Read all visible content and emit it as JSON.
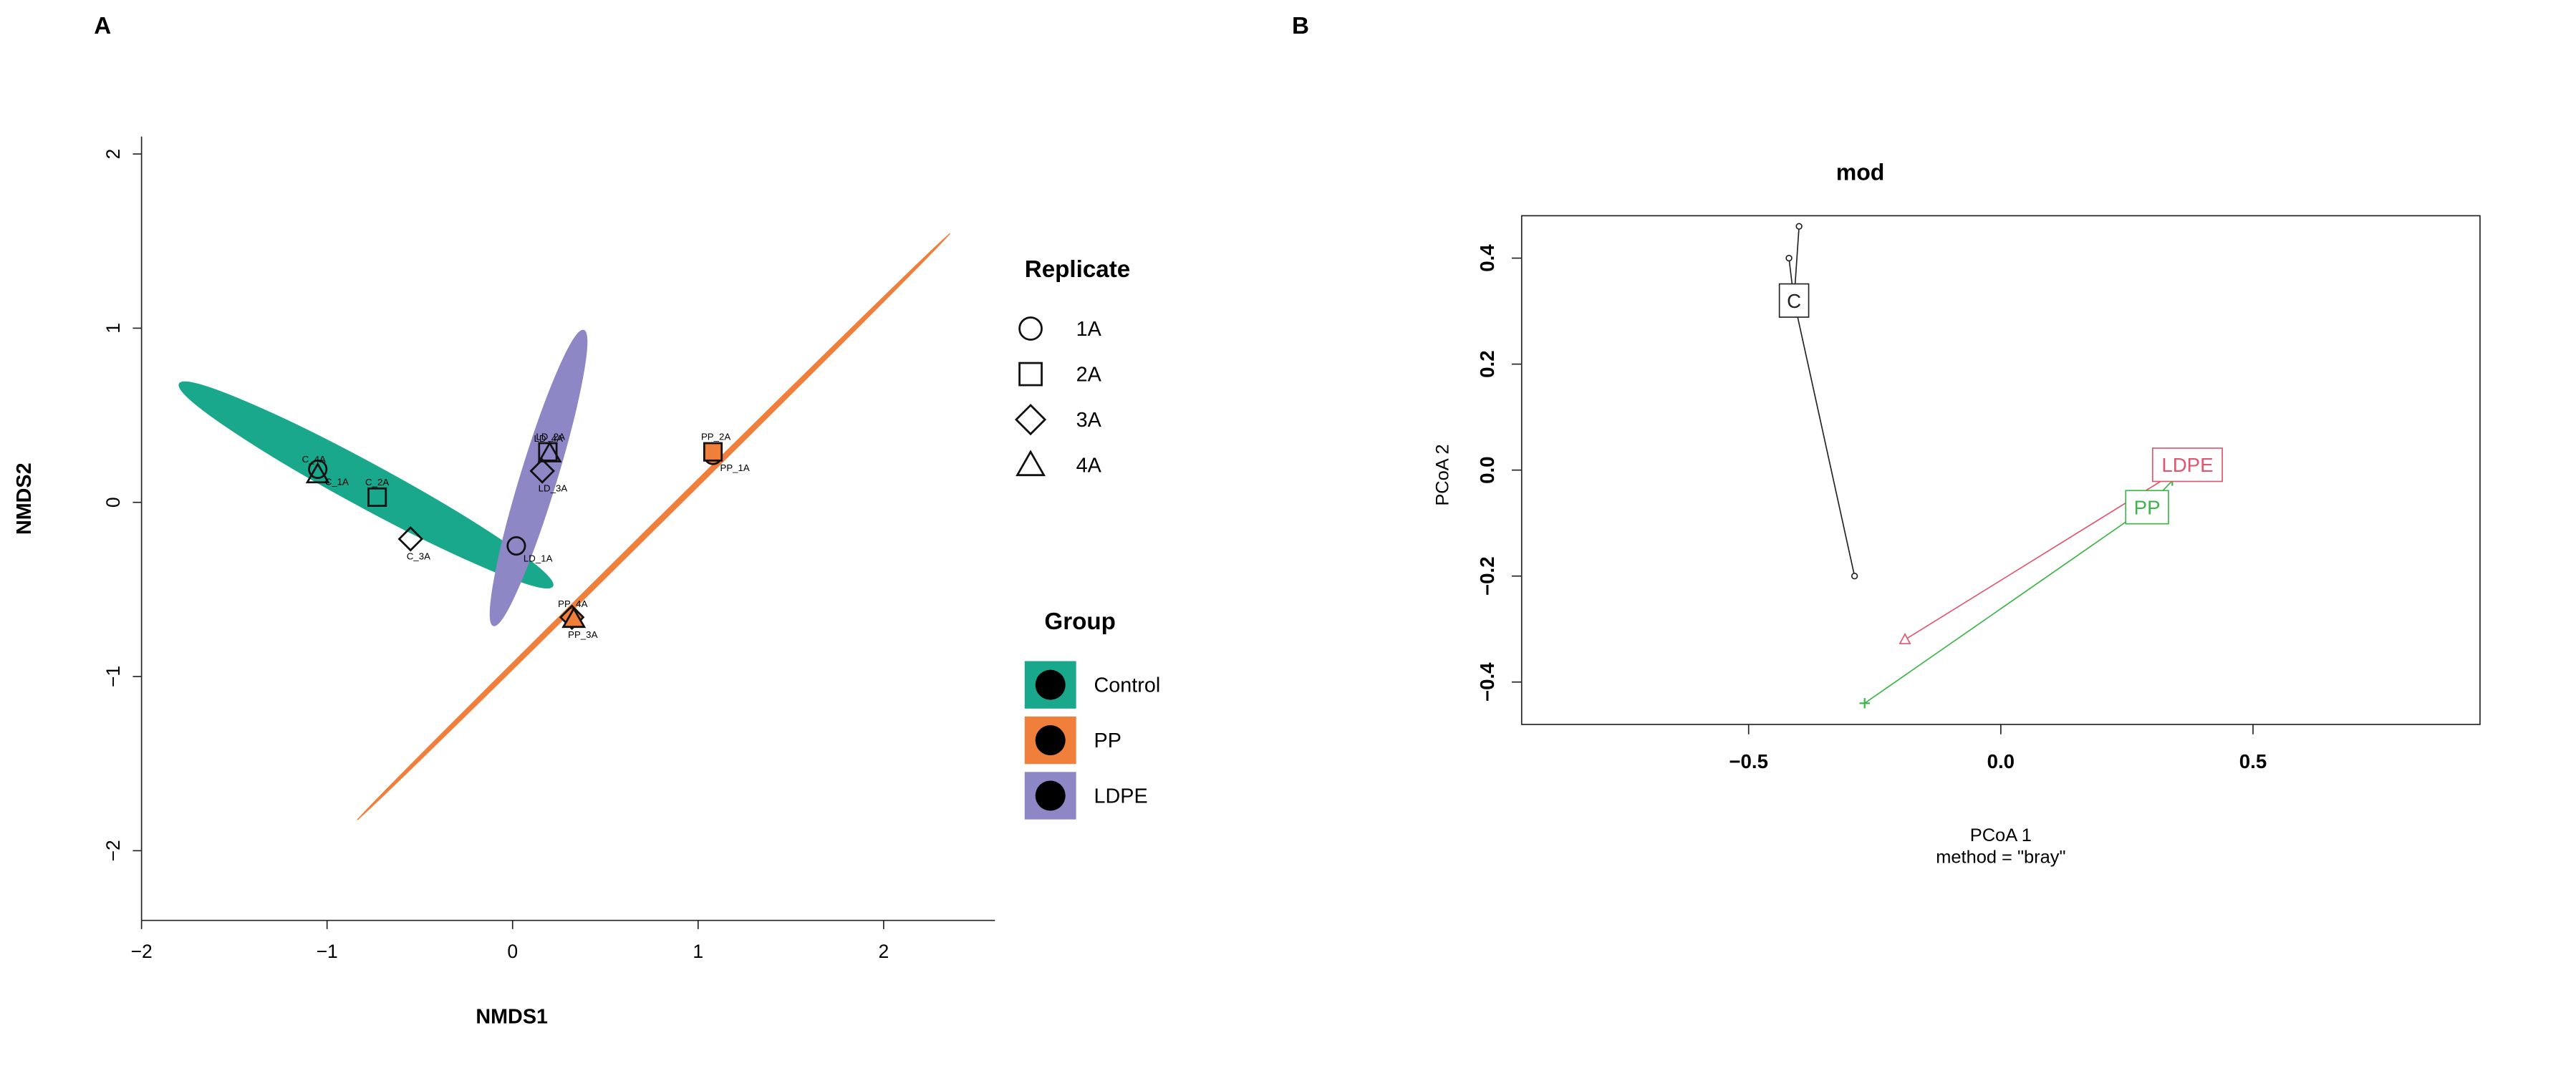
{
  "panels": {
    "a_letter": "A",
    "b_letter": "B"
  },
  "chart_data": [
    {
      "type": "scatter",
      "panel": "A",
      "xlabel": "NMDS1",
      "ylabel": "NMDS2",
      "xlim": [
        -2,
        2.6
      ],
      "ylim": [
        -2.4,
        2.1
      ],
      "xticks": [
        -2,
        -1,
        0,
        1,
        2
      ],
      "yticks": [
        -2,
        -1,
        0,
        1,
        2
      ],
      "xtick_labels": [
        "−2",
        "−1",
        "0",
        "1",
        "2"
      ],
      "ytick_labels": [
        "−2",
        "−1",
        "0",
        "1",
        "2"
      ],
      "points": [
        {
          "label": "C_1A",
          "group": "Control",
          "replicate": "1A",
          "x": -1.05,
          "y": 0.19
        },
        {
          "label": "C_2A",
          "group": "Control",
          "replicate": "2A",
          "x": -0.73,
          "y": 0.03
        },
        {
          "label": "C_3A",
          "group": "Control",
          "replicate": "3A",
          "x": -0.55,
          "y": -0.21
        },
        {
          "label": "C_4A",
          "group": "Control",
          "replicate": "4A",
          "x": -1.05,
          "y": 0.16
        },
        {
          "label": "PP_1A",
          "group": "PP",
          "replicate": "1A",
          "x": 1.08,
          "y": 0.27
        },
        {
          "label": "PP_2A",
          "group": "PP",
          "replicate": "2A",
          "x": 1.08,
          "y": 0.29
        },
        {
          "label": "PP_3A",
          "group": "PP",
          "replicate": "3A",
          "x": 0.32,
          "y": -0.66
        },
        {
          "label": "PP_4A",
          "group": "PP",
          "replicate": "4A",
          "x": 0.33,
          "y": -0.67
        },
        {
          "label": "LD_1A",
          "group": "LDPE",
          "replicate": "1A",
          "x": 0.02,
          "y": -0.25
        },
        {
          "label": "LD_2A",
          "group": "LDPE",
          "replicate": "2A",
          "x": 0.19,
          "y": 0.29
        },
        {
          "label": "LD_3A",
          "group": "LDPE",
          "replicate": "3A",
          "x": 0.16,
          "y": 0.18
        },
        {
          "label": "LD_4A",
          "group": "LDPE",
          "replicate": "4A",
          "x": 0.2,
          "y": 0.28
        }
      ],
      "ellipses": [
        {
          "group": "Control",
          "color": "#1aa88c",
          "cx": -0.79,
          "cy": 0.1,
          "semi_major": 1.16,
          "semi_minor": 0.115,
          "angle_deg": -30
        },
        {
          "group": "PP",
          "color": "#f07f3c",
          "cx": 0.76,
          "cy": -0.14,
          "semi_major": 2.32,
          "semi_minor": 0.012,
          "angle_deg": 46.5
        },
        {
          "group": "LDPE",
          "color": "#8d87c6",
          "cx": 0.14,
          "cy": 0.14,
          "semi_major": 0.88,
          "semi_minor": 0.095,
          "angle_deg": 74
        }
      ],
      "legend": {
        "replicate_title": "Replicate",
        "replicates": [
          {
            "label": "1A",
            "shape": "circle"
          },
          {
            "label": "2A",
            "shape": "square"
          },
          {
            "label": "3A",
            "shape": "diamond"
          },
          {
            "label": "4A",
            "shape": "triangle"
          }
        ],
        "group_title": "Group",
        "groups": [
          {
            "label": "Control",
            "color": "#1aa88c"
          },
          {
            "label": "PP",
            "color": "#f07f3c"
          },
          {
            "label": "LDPE",
            "color": "#8d87c6"
          }
        ],
        "placement": "right"
      }
    },
    {
      "type": "scatter",
      "panel": "B",
      "title": "mod",
      "xlabel": "PCoA 1",
      "xlabel_sub": "method = \"bray\"",
      "ylabel": "PCoA 2",
      "xlim": [
        -0.95,
        0.95
      ],
      "ylim": [
        -0.48,
        0.48
      ],
      "xticks": [
        -0.5,
        0,
        0.5
      ],
      "yticks": [
        -0.4,
        -0.2,
        0,
        0.2,
        0.4
      ],
      "xtick_labels": [
        "−0.5",
        "0.0",
        "0.5"
      ],
      "ytick_labels": [
        "−0.4",
        "−0.2",
        "0.0",
        "0.2",
        "0.4"
      ],
      "groups": [
        {
          "label": "C",
          "color": "#222222",
          "centroid": {
            "x": -0.41,
            "y": 0.32
          },
          "points": [
            {
              "x": -0.4,
              "y": 0.46
            },
            {
              "x": -0.42,
              "y": 0.4
            },
            {
              "x": -0.29,
              "y": -0.2
            }
          ]
        },
        {
          "label": "LDPE",
          "color": "#e0566f",
          "centroid": {
            "x": 0.37,
            "y": 0.01
          },
          "points": [
            {
              "x": 0.37,
              "y": -0.01
            },
            {
              "x": -0.19,
              "y": -0.32
            }
          ]
        },
        {
          "label": "PP",
          "color": "#3db54a",
          "centroid": {
            "x": 0.29,
            "y": -0.07
          },
          "points": [
            {
              "x": 0.34,
              "y": -0.02
            },
            {
              "x": -0.27,
              "y": -0.44
            }
          ]
        }
      ]
    }
  ]
}
